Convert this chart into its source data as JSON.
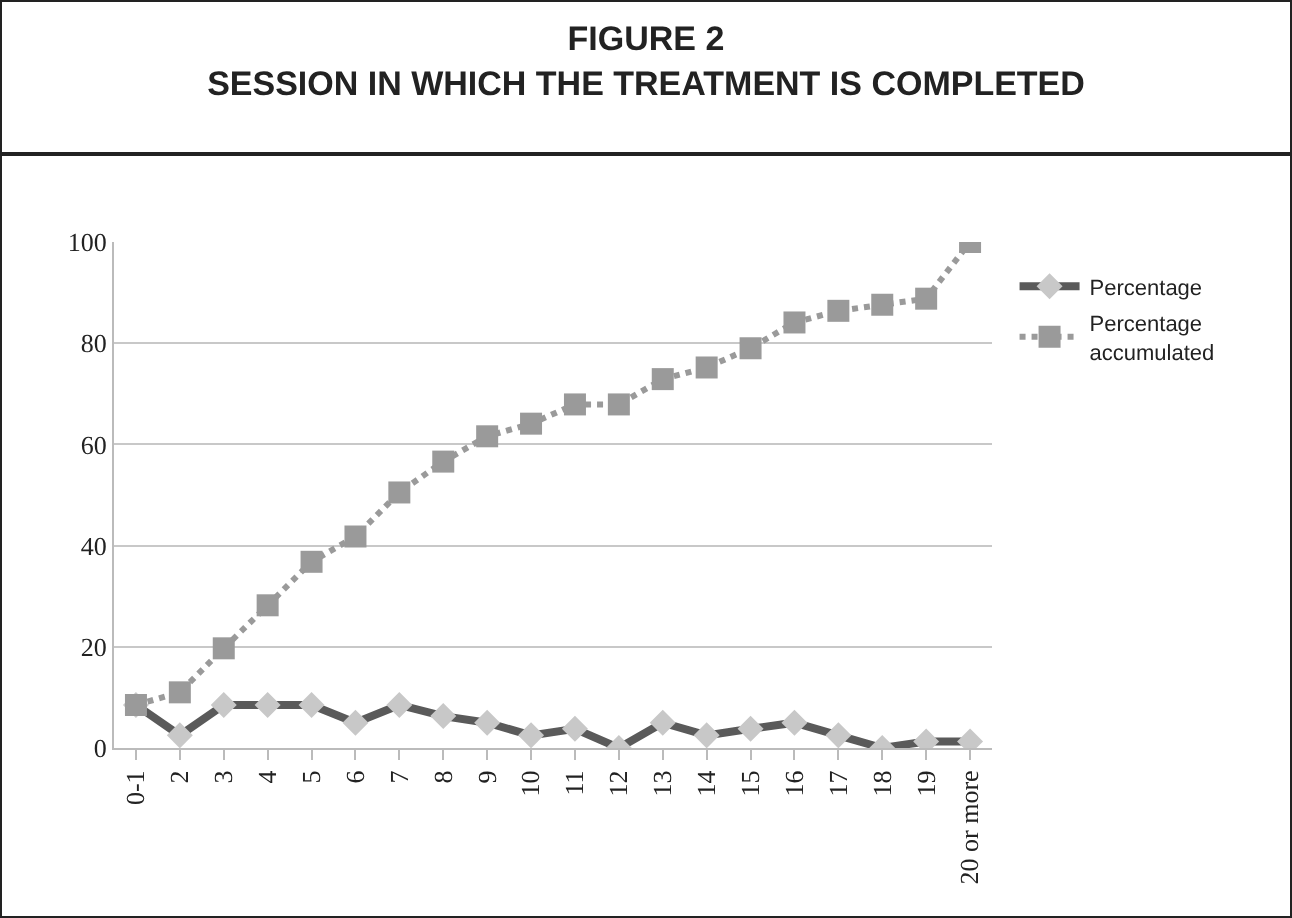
{
  "chart_data": {
    "type": "line",
    "title": "FIGURE 2\nSESSION IN WHICH THE TREATMENT IS COMPLETED",
    "categories": [
      "0-1",
      "2",
      "3",
      "4",
      "5",
      "6",
      "7",
      "8",
      "9",
      "10",
      "11",
      "12",
      "13",
      "14",
      "15",
      "16",
      "17",
      "18",
      "19",
      "20 or more"
    ],
    "series": [
      {
        "name": "Percentage",
        "color": "#5a5a5a",
        "marker": "diamond",
        "line_style": "solid",
        "values": [
          8.5,
          2.5,
          8.5,
          8.5,
          8.5,
          5,
          8.5,
          6.3,
          5,
          2.5,
          3.8,
          0,
          5,
          2.5,
          3.8,
          5,
          2.5,
          0,
          1.3,
          1.3
        ]
      },
      {
        "name": "Percentage accumulated",
        "color": "#9a9a9a",
        "marker": "square",
        "line_style": "dotted",
        "values": [
          8.5,
          11,
          19.7,
          28.2,
          36.8,
          41.8,
          50.5,
          56.6,
          61.6,
          64.1,
          67.9,
          67.9,
          72.9,
          75.2,
          79,
          84.1,
          86.4,
          87.6,
          88.8,
          100
        ]
      }
    ],
    "ylim": [
      0,
      100
    ],
    "yticks": [
      0,
      20,
      40,
      60,
      80,
      100
    ],
    "grid": "y",
    "legend": "top right"
  }
}
